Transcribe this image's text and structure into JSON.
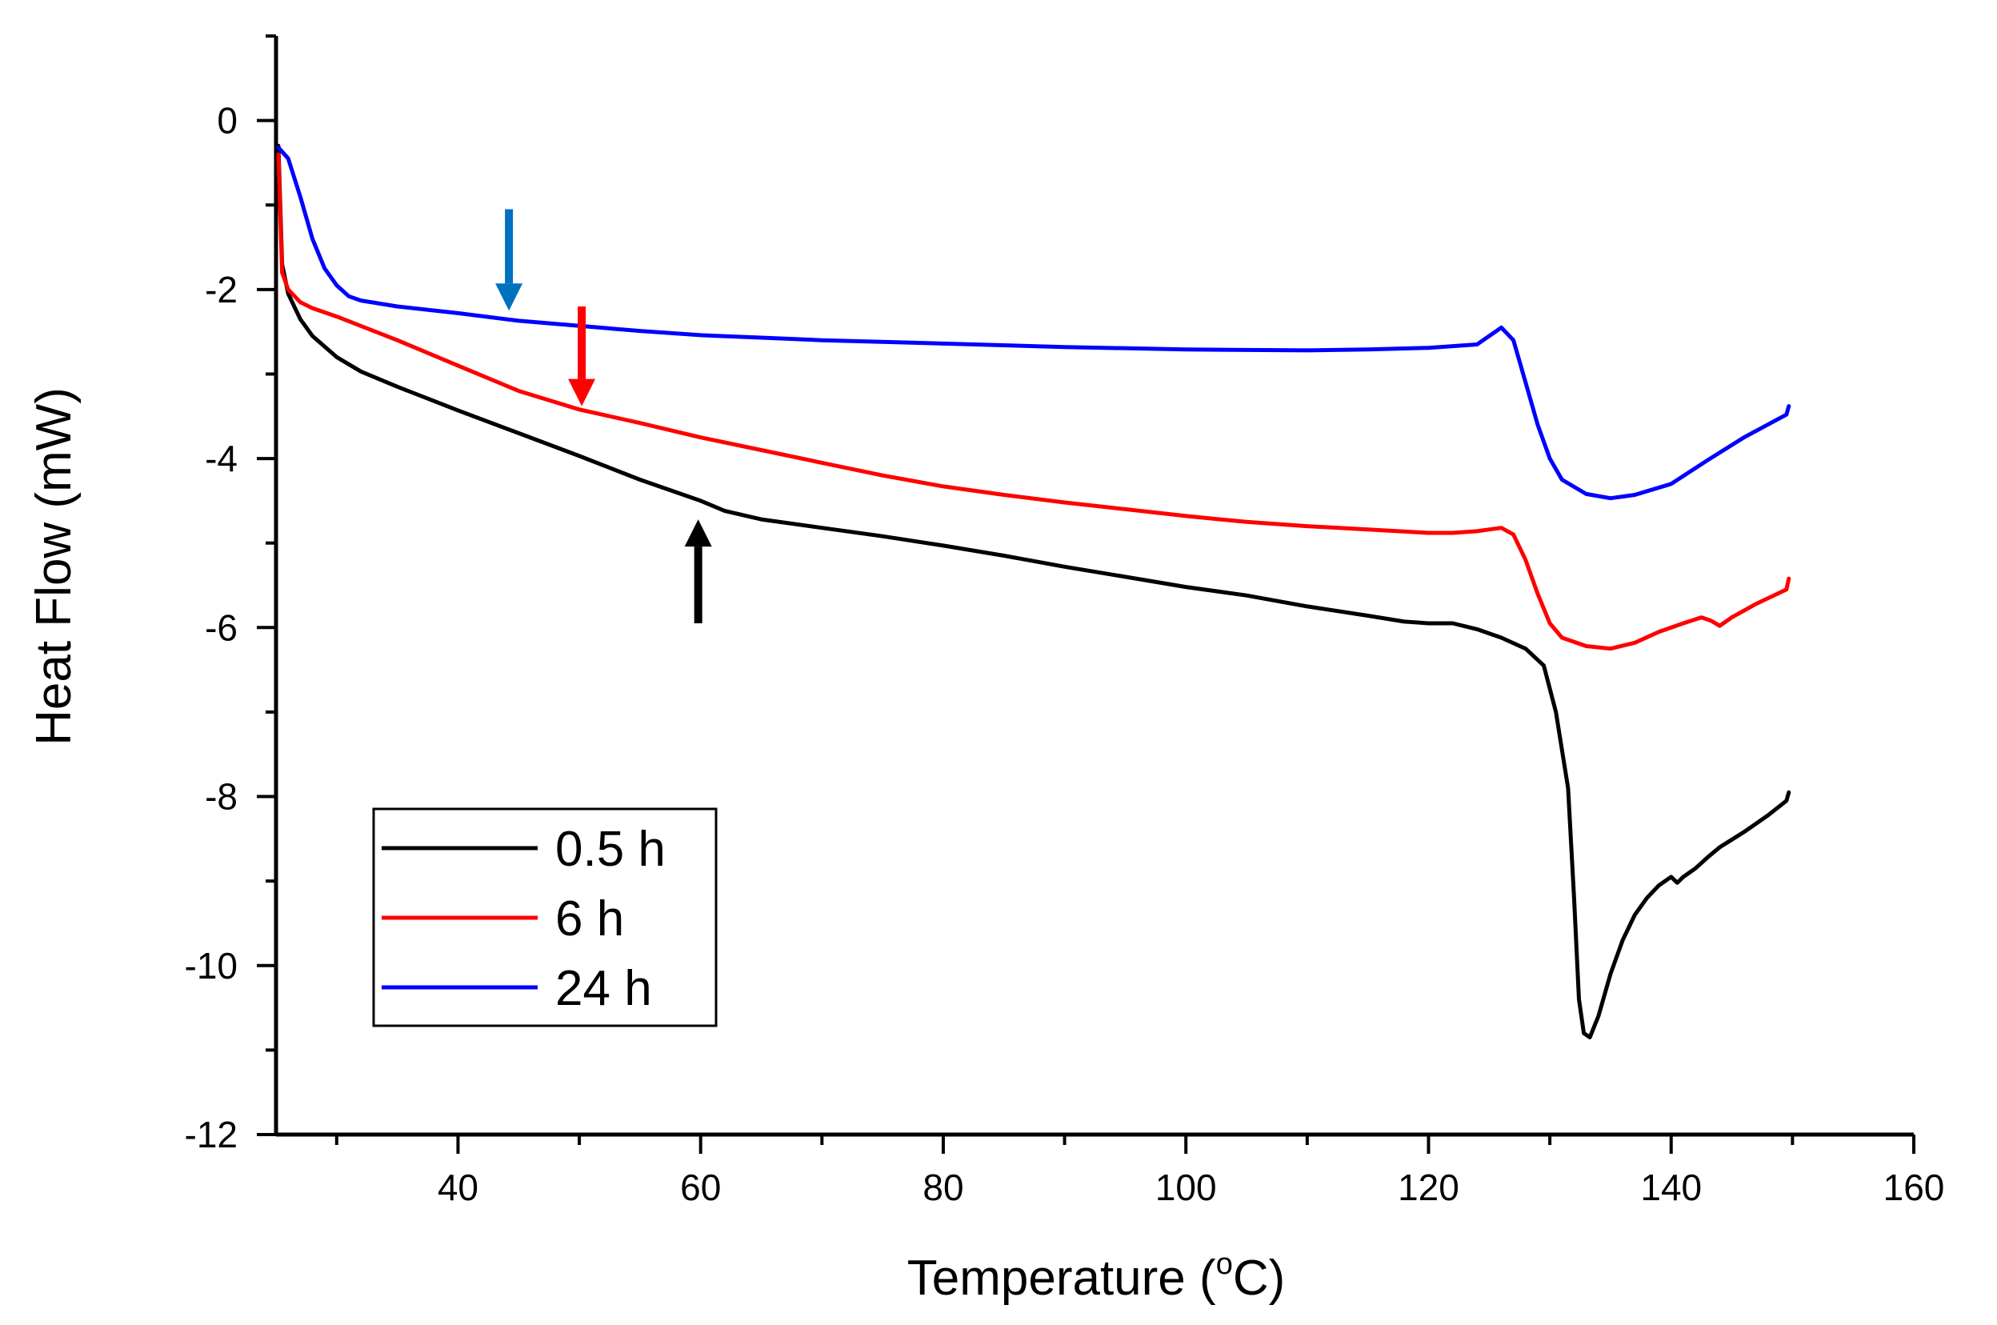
{
  "chart_data": {
    "type": "line",
    "title": "",
    "xlabel": "Temperature",
    "xlabel_unit_base": "(",
    "xlabel_unit_sup": "o",
    "xlabel_unit_tail": "C)",
    "ylabel": "Heat Flow (mW)",
    "xlim": [
      25,
      160
    ],
    "ylim": [
      -12,
      1
    ],
    "x_ticks": [
      40,
      60,
      80,
      100,
      120,
      140,
      160
    ],
    "y_ticks": [
      0,
      -2,
      -4,
      -6,
      -8,
      -10,
      -12
    ],
    "grid": false,
    "legend_position": "bottom-left",
    "series": [
      {
        "name": "0.5 h",
        "color": "#000000",
        "points": [
          [
            25.2,
            -0.3
          ],
          [
            25.5,
            -1.7
          ],
          [
            26,
            -2.05
          ],
          [
            27,
            -2.35
          ],
          [
            28,
            -2.55
          ],
          [
            30,
            -2.8
          ],
          [
            32,
            -2.97
          ],
          [
            35,
            -3.15
          ],
          [
            40,
            -3.43
          ],
          [
            45,
            -3.7
          ],
          [
            50,
            -3.97
          ],
          [
            55,
            -4.25
          ],
          [
            60,
            -4.5
          ],
          [
            62,
            -4.62
          ],
          [
            65,
            -4.72
          ],
          [
            70,
            -4.82
          ],
          [
            75,
            -4.92
          ],
          [
            80,
            -5.03
          ],
          [
            85,
            -5.15
          ],
          [
            90,
            -5.28
          ],
          [
            95,
            -5.4
          ],
          [
            100,
            -5.52
          ],
          [
            105,
            -5.62
          ],
          [
            110,
            -5.75
          ],
          [
            115,
            -5.86
          ],
          [
            118,
            -5.93
          ],
          [
            120,
            -5.95
          ],
          [
            122,
            -5.95
          ],
          [
            124,
            -6.02
          ],
          [
            126,
            -6.12
          ],
          [
            128,
            -6.25
          ],
          [
            129.5,
            -6.45
          ],
          [
            130.5,
            -7.0
          ],
          [
            131.5,
            -7.9
          ],
          [
            132,
            -9.2
          ],
          [
            132.4,
            -10.4
          ],
          [
            132.8,
            -10.8
          ],
          [
            133.3,
            -10.85
          ],
          [
            134,
            -10.6
          ],
          [
            135,
            -10.1
          ],
          [
            136,
            -9.7
          ],
          [
            137,
            -9.4
          ],
          [
            138,
            -9.2
          ],
          [
            139,
            -9.05
          ],
          [
            140,
            -8.95
          ],
          [
            140.5,
            -9.02
          ],
          [
            141,
            -8.95
          ],
          [
            142,
            -8.85
          ],
          [
            143,
            -8.72
          ],
          [
            144,
            -8.6
          ],
          [
            146,
            -8.42
          ],
          [
            148,
            -8.22
          ],
          [
            149.5,
            -8.05
          ],
          [
            149.7,
            -7.95
          ]
        ]
      },
      {
        "name": "6 h",
        "color": "#ff0000",
        "points": [
          [
            25.2,
            -0.4
          ],
          [
            25.5,
            -1.8
          ],
          [
            26,
            -2.0
          ],
          [
            27,
            -2.15
          ],
          [
            28,
            -2.22
          ],
          [
            30,
            -2.32
          ],
          [
            35,
            -2.6
          ],
          [
            40,
            -2.9
          ],
          [
            45,
            -3.2
          ],
          [
            50,
            -3.42
          ],
          [
            55,
            -3.58
          ],
          [
            60,
            -3.75
          ],
          [
            65,
            -3.9
          ],
          [
            70,
            -4.05
          ],
          [
            75,
            -4.2
          ],
          [
            80,
            -4.33
          ],
          [
            85,
            -4.43
          ],
          [
            90,
            -4.52
          ],
          [
            95,
            -4.6
          ],
          [
            100,
            -4.68
          ],
          [
            105,
            -4.75
          ],
          [
            110,
            -4.8
          ],
          [
            115,
            -4.84
          ],
          [
            120,
            -4.88
          ],
          [
            122,
            -4.88
          ],
          [
            124,
            -4.86
          ],
          [
            126,
            -4.82
          ],
          [
            127,
            -4.9
          ],
          [
            128,
            -5.2
          ],
          [
            129,
            -5.6
          ],
          [
            130,
            -5.95
          ],
          [
            131,
            -6.12
          ],
          [
            133,
            -6.22
          ],
          [
            135,
            -6.25
          ],
          [
            137,
            -6.18
          ],
          [
            139,
            -6.05
          ],
          [
            141,
            -5.95
          ],
          [
            142.5,
            -5.88
          ],
          [
            143.3,
            -5.92
          ],
          [
            144,
            -5.98
          ],
          [
            145,
            -5.88
          ],
          [
            147,
            -5.72
          ],
          [
            149.5,
            -5.55
          ],
          [
            149.7,
            -5.42
          ]
        ]
      },
      {
        "name": "24 h",
        "color": "#0000ff",
        "points": [
          [
            25.2,
            -0.32
          ],
          [
            26,
            -0.45
          ],
          [
            27,
            -0.9
          ],
          [
            28,
            -1.4
          ],
          [
            29,
            -1.75
          ],
          [
            30,
            -1.95
          ],
          [
            31,
            -2.08
          ],
          [
            32,
            -2.13
          ],
          [
            35,
            -2.2
          ],
          [
            40,
            -2.28
          ],
          [
            45,
            -2.37
          ],
          [
            50,
            -2.43
          ],
          [
            55,
            -2.49
          ],
          [
            60,
            -2.54
          ],
          [
            65,
            -2.57
          ],
          [
            70,
            -2.6
          ],
          [
            80,
            -2.64
          ],
          [
            90,
            -2.68
          ],
          [
            100,
            -2.71
          ],
          [
            110,
            -2.72
          ],
          [
            115,
            -2.71
          ],
          [
            120,
            -2.69
          ],
          [
            124,
            -2.65
          ],
          [
            125,
            -2.55
          ],
          [
            126,
            -2.45
          ],
          [
            127,
            -2.6
          ],
          [
            128,
            -3.1
          ],
          [
            129,
            -3.6
          ],
          [
            130,
            -4.0
          ],
          [
            131,
            -4.25
          ],
          [
            133,
            -4.42
          ],
          [
            135,
            -4.47
          ],
          [
            137,
            -4.43
          ],
          [
            140,
            -4.3
          ],
          [
            143,
            -4.02
          ],
          [
            146,
            -3.75
          ],
          [
            149.5,
            -3.48
          ],
          [
            149.7,
            -3.38
          ]
        ]
      }
    ],
    "annotations": [
      {
        "type": "arrow",
        "direction": "down",
        "color": "#0070c0",
        "x": 44.2,
        "y_from": -1.05,
        "y_to": -2.25
      },
      {
        "type": "arrow",
        "direction": "down",
        "color": "#ff0000",
        "x": 50.2,
        "y_from": -2.2,
        "y_to": -3.38
      },
      {
        "type": "arrow",
        "direction": "up",
        "color": "#000000",
        "x": 59.8,
        "y_from": -5.95,
        "y_to": -4.72
      }
    ]
  }
}
